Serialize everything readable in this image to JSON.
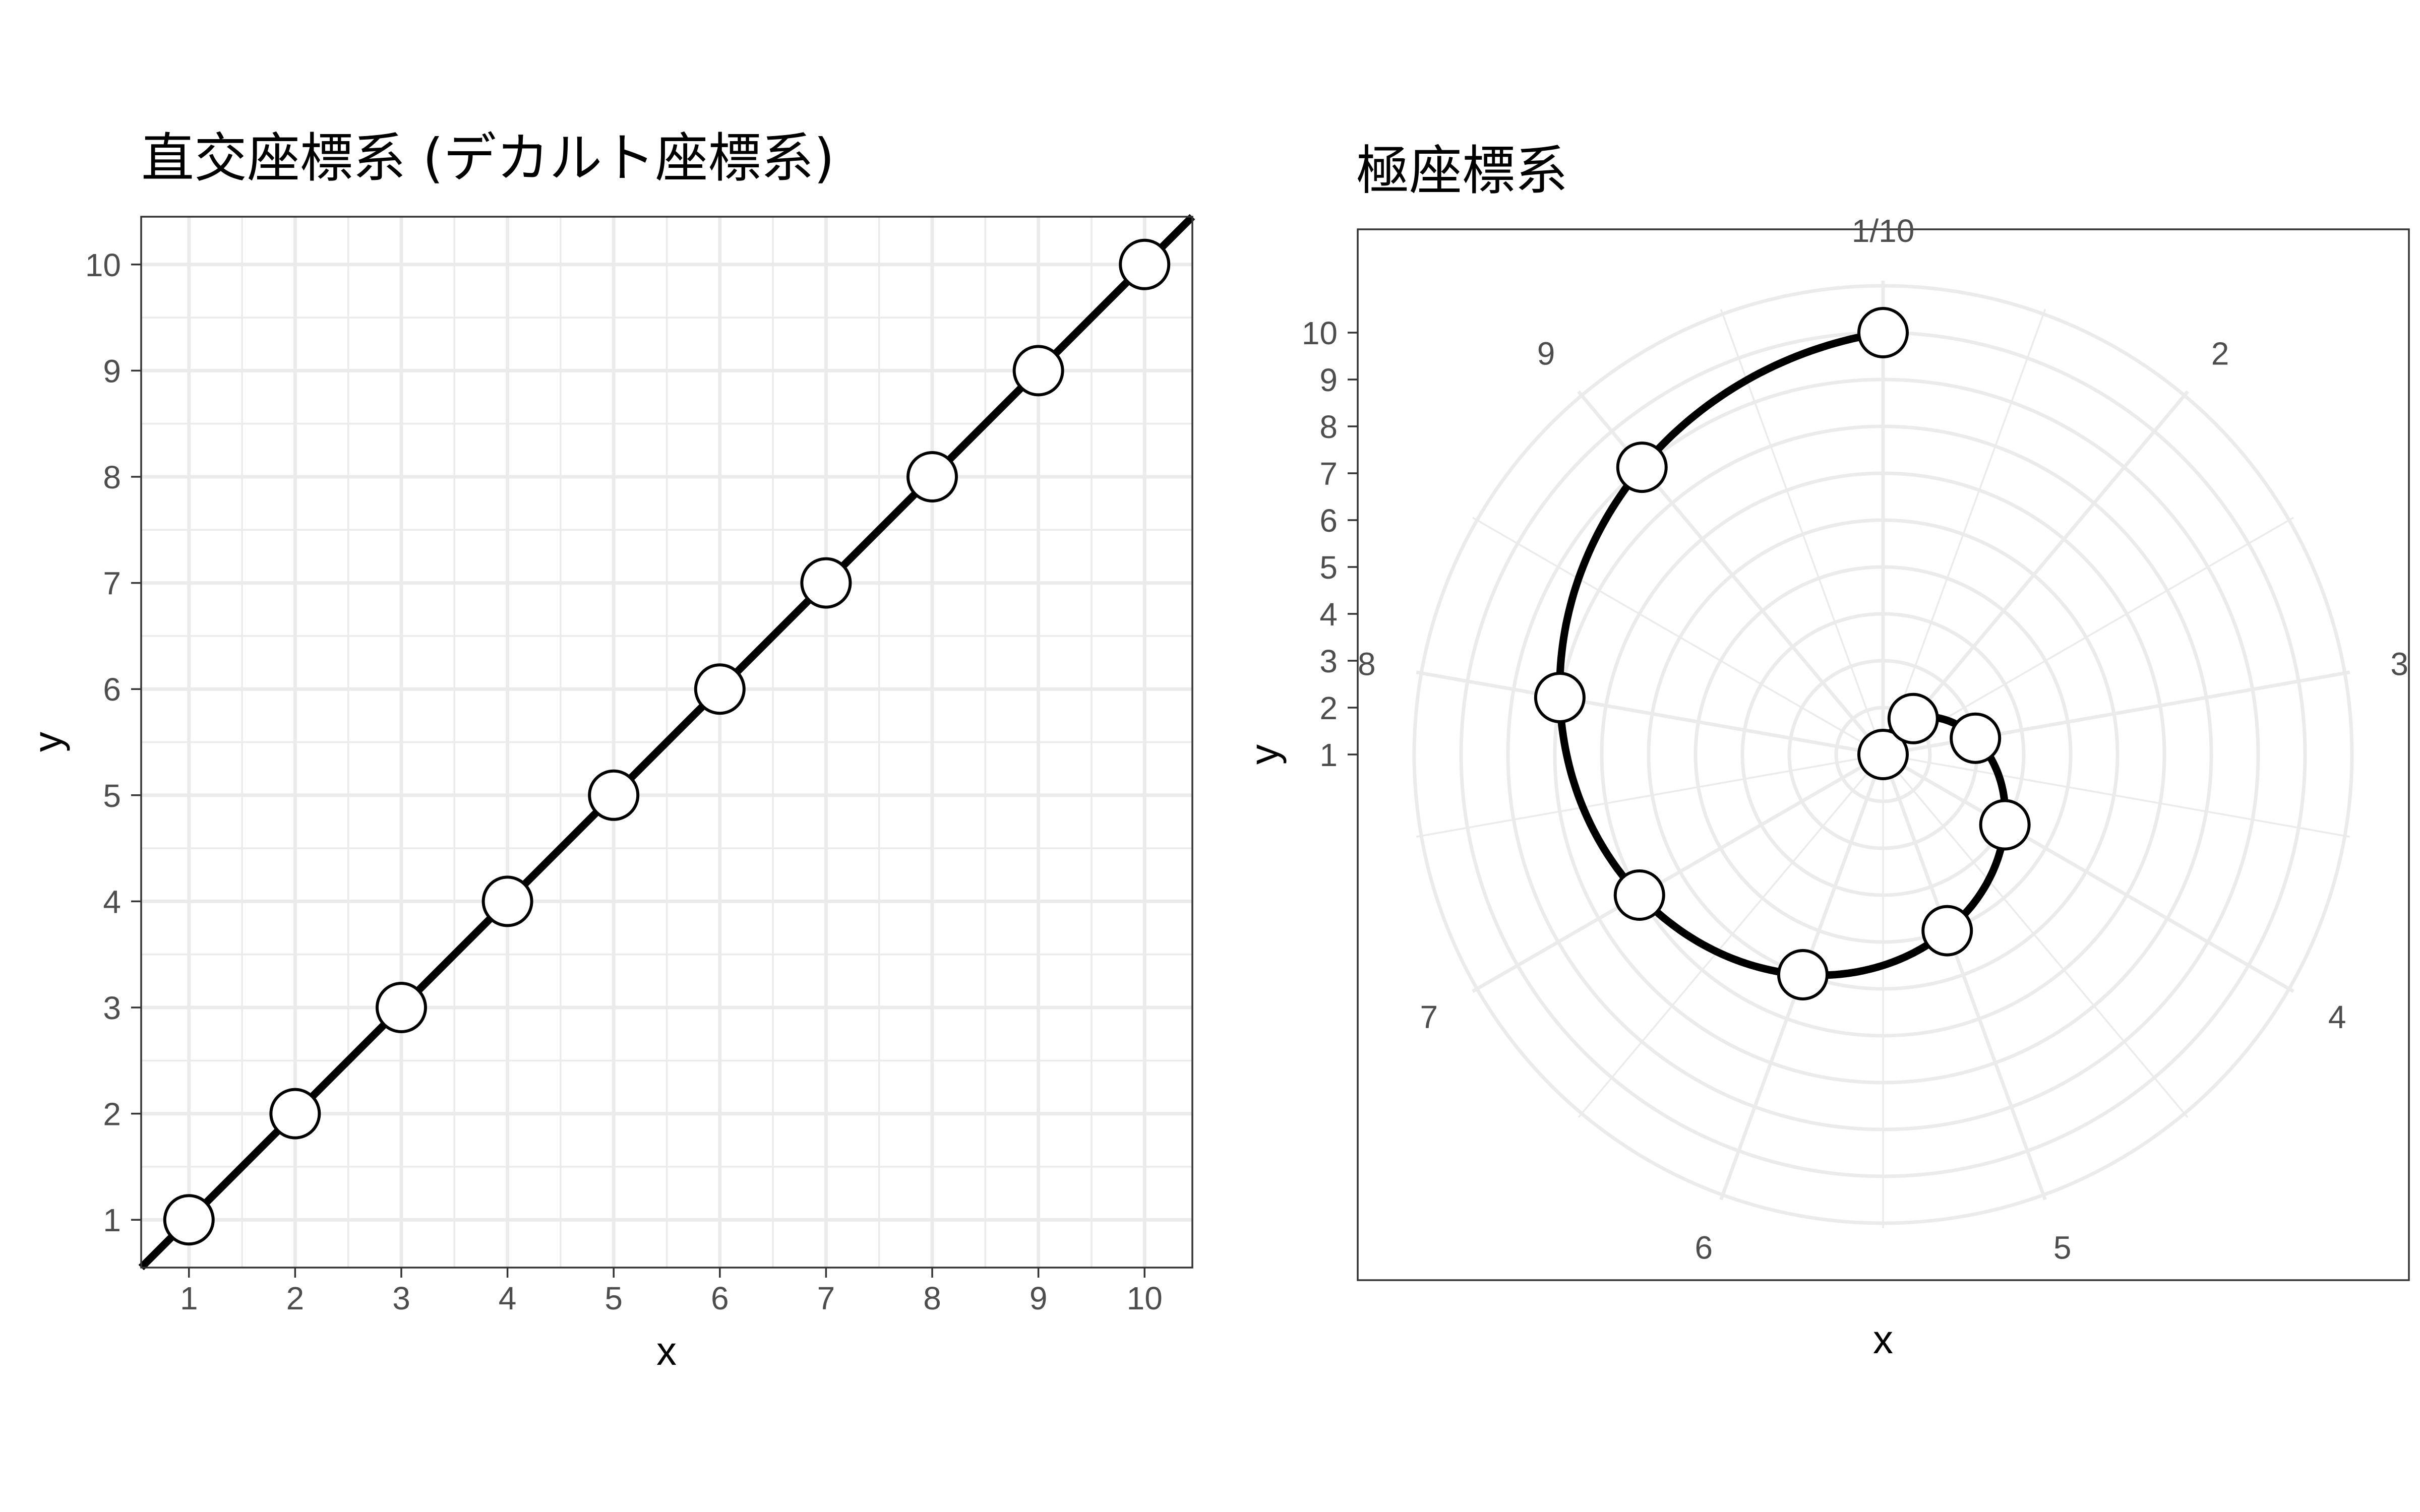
{
  "chart_data": [
    {
      "type": "line",
      "title": "直交座標系 (デカルト座標系)",
      "xlabel": "x",
      "ylabel": "y",
      "xlim": [
        0.55,
        10.45
      ],
      "ylim": [
        0.55,
        10.45
      ],
      "x_ticks": [
        "1",
        "2",
        "3",
        "4",
        "5",
        "6",
        "7",
        "8",
        "9",
        "10"
      ],
      "y_ticks": [
        "1",
        "2",
        "3",
        "4",
        "5",
        "6",
        "7",
        "8",
        "9",
        "10"
      ],
      "grid": true,
      "series": [
        {
          "x": [
            1,
            2,
            3,
            4,
            5,
            6,
            7,
            8,
            9,
            10
          ],
          "y": [
            1,
            2,
            3,
            4,
            5,
            6,
            7,
            8,
            9,
            10
          ]
        }
      ]
    },
    {
      "type": "line",
      "coord": "polar",
      "title": "極座標系",
      "xlabel": "x",
      "ylabel": "y",
      "angle_ticks": [
        "1/10",
        "2",
        "3",
        "4",
        "5",
        "6",
        "7",
        "8",
        "9"
      ],
      "radius_ticks": [
        "1",
        "2",
        "3",
        "4",
        "5",
        "6",
        "7",
        "8",
        "9",
        "10"
      ],
      "grid": true,
      "series": [
        {
          "x": [
            1,
            2,
            3,
            4,
            5,
            6,
            7,
            8,
            9,
            10
          ],
          "y": [
            1,
            2,
            3,
            4,
            5,
            6,
            7,
            8,
            9,
            10
          ]
        }
      ]
    }
  ],
  "colors": {
    "line": "#000000",
    "point_fill": "#ffffff",
    "grid": "#ebebeb",
    "border": "#333333",
    "tick_text": "#4d4d4d"
  }
}
